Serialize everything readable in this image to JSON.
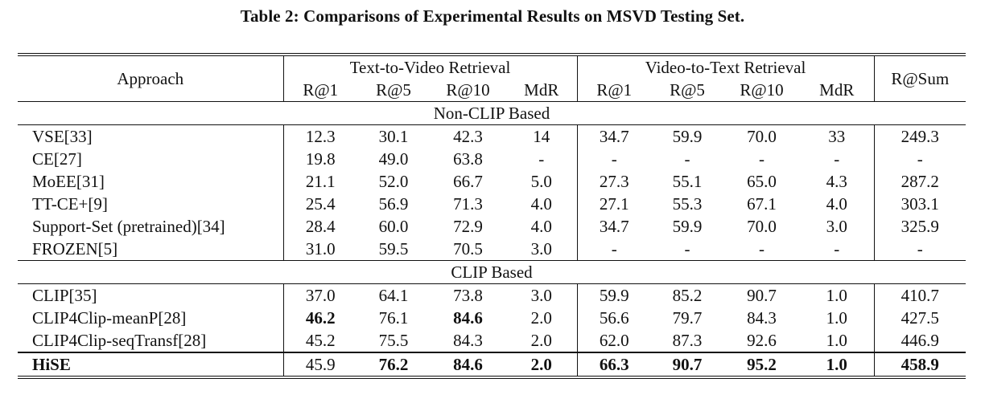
{
  "caption": "Table 2: Comparisons of Experimental Results on MSVD Testing Set.",
  "header": {
    "approach": "Approach",
    "t2v": "Text-to-Video Retrieval",
    "v2t": "Video-to-Text Retrieval",
    "rsum": "R@Sum",
    "metrics": [
      "R@1",
      "R@5",
      "R@10",
      "MdR",
      "R@1",
      "R@5",
      "R@10",
      "MdR"
    ]
  },
  "groups": [
    {
      "label": "Non-CLIP Based",
      "rows": [
        {
          "name": "VSE[33]",
          "cells": [
            "12.3",
            "30.1",
            "42.3",
            "14",
            "34.7",
            "59.9",
            "70.0",
            "33",
            "249.3"
          ],
          "bold": []
        },
        {
          "name": "CE[27]",
          "cells": [
            "19.8",
            "49.0",
            "63.8",
            "-",
            "-",
            "-",
            "-",
            "-",
            "-"
          ],
          "bold": []
        },
        {
          "name": "MoEE[31]",
          "cells": [
            "21.1",
            "52.0",
            "66.7",
            "5.0",
            "27.3",
            "55.1",
            "65.0",
            "4.3",
            "287.2"
          ],
          "bold": []
        },
        {
          "name": "TT-CE+[9]",
          "cells": [
            "25.4",
            "56.9",
            "71.3",
            "4.0",
            "27.1",
            "55.3",
            "67.1",
            "4.0",
            "303.1"
          ],
          "bold": []
        },
        {
          "name": "Support-Set (pretrained)[34]",
          "cells": [
            "28.4",
            "60.0",
            "72.9",
            "4.0",
            "34.7",
            "59.9",
            "70.0",
            "3.0",
            "325.9"
          ],
          "bold": []
        },
        {
          "name": "FROZEN[5]",
          "cells": [
            "31.0",
            "59.5",
            "70.5",
            "3.0",
            "-",
            "-",
            "-",
            "-",
            "-"
          ],
          "bold": []
        }
      ]
    },
    {
      "label": "CLIP Based",
      "rows": [
        {
          "name": "CLIP[35]",
          "cells": [
            "37.0",
            "64.1",
            "73.8",
            "3.0",
            "59.9",
            "85.2",
            "90.7",
            "1.0",
            "410.7"
          ],
          "bold": []
        },
        {
          "name": "CLIP4Clip-meanP[28]",
          "cells": [
            "46.2",
            "76.1",
            "84.6",
            "2.0",
            "56.6",
            "79.7",
            "84.3",
            "1.0",
            "427.5"
          ],
          "bold": [
            0,
            2
          ]
        },
        {
          "name": "CLIP4Clip-seqTransf[28]",
          "cells": [
            "45.2",
            "75.5",
            "84.3",
            "2.0",
            "62.0",
            "87.3",
            "92.6",
            "1.0",
            "446.9"
          ],
          "bold": []
        }
      ]
    }
  ],
  "final_row": {
    "name": "HiSE",
    "cells": [
      "45.9",
      "76.2",
      "84.6",
      "2.0",
      "66.3",
      "90.7",
      "95.2",
      "1.0",
      "458.9"
    ],
    "bold": [
      1,
      2,
      3,
      4,
      5,
      6,
      7,
      8
    ],
    "name_bold": true
  }
}
